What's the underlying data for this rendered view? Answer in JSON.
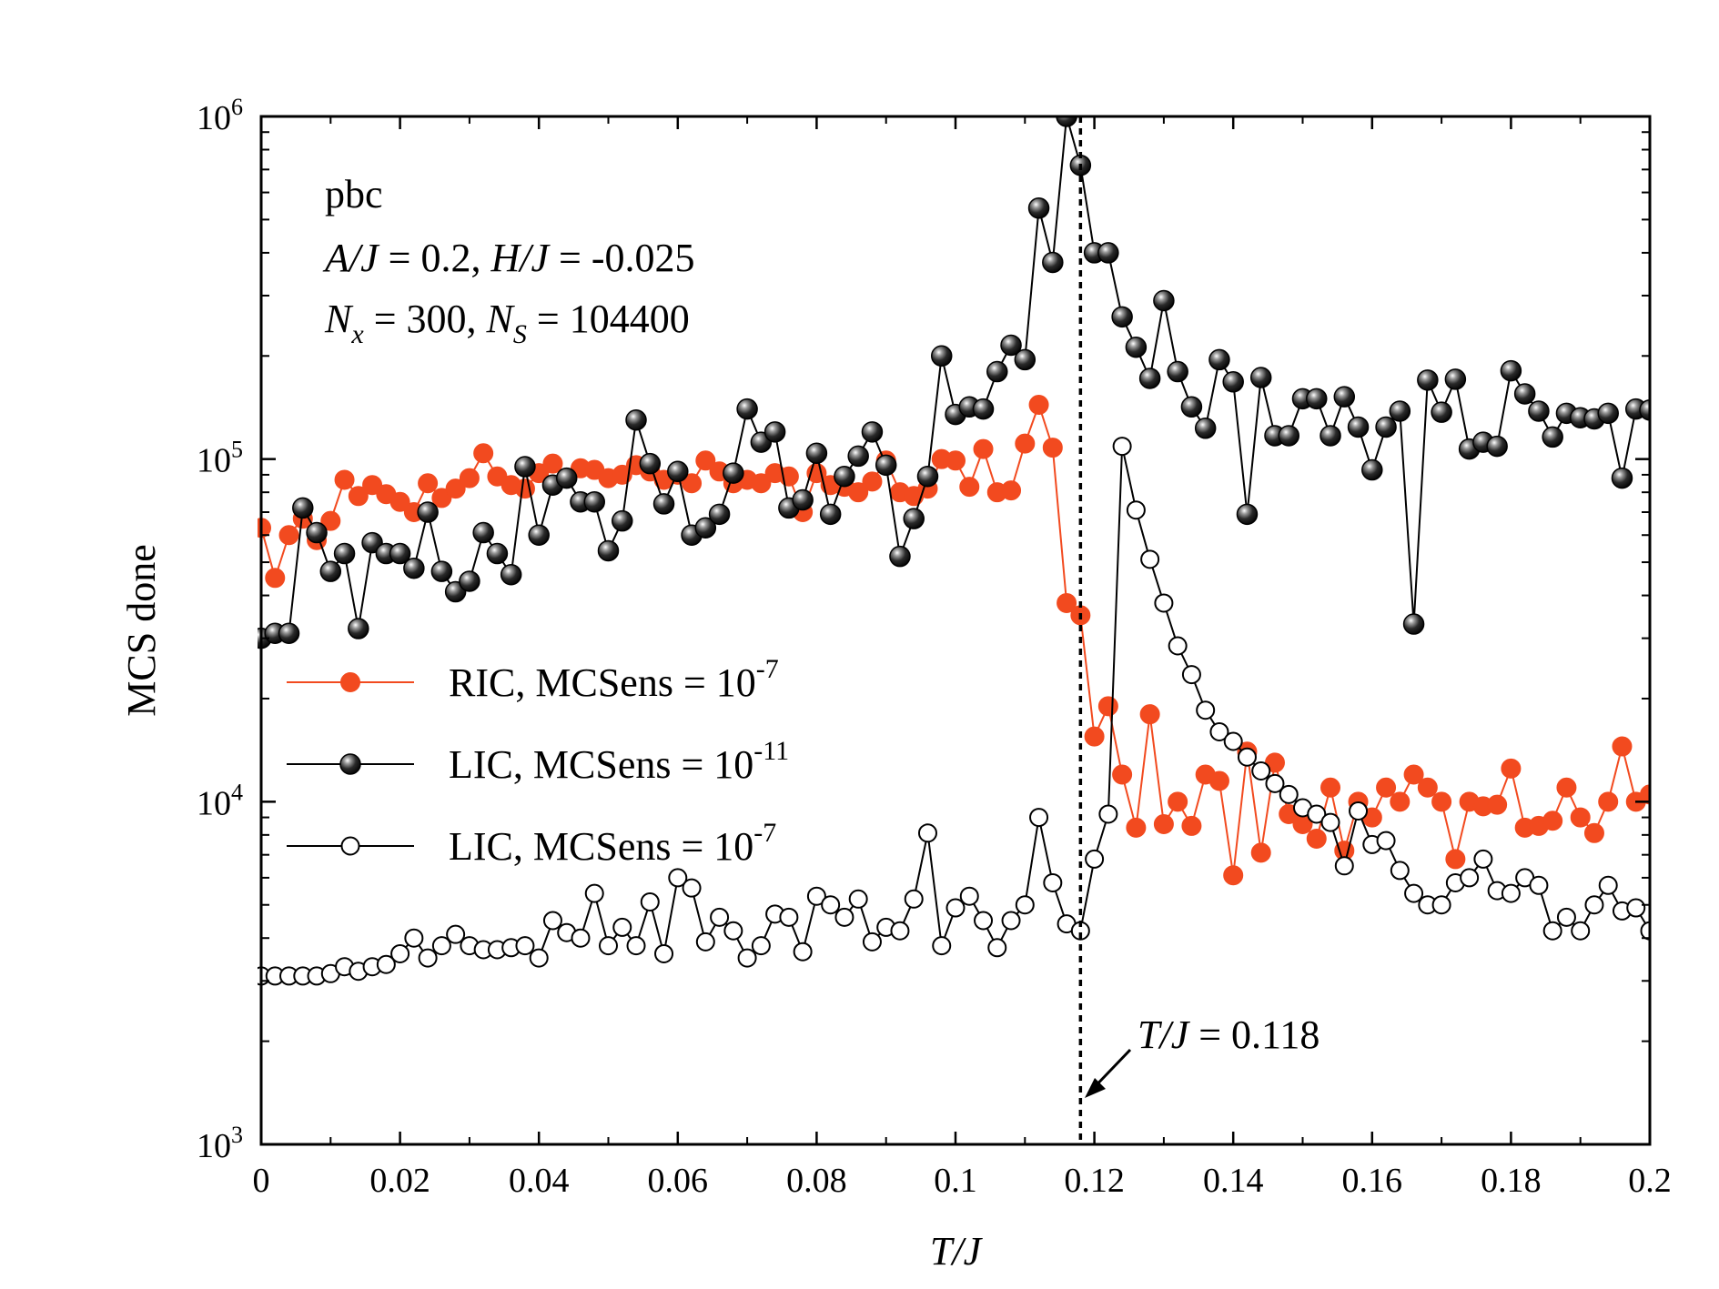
{
  "chart_data": {
    "type": "line",
    "xlabel": "T/J",
    "ylabel": "MCS done",
    "xlim": [
      0,
      0.2
    ],
    "ylim": [
      1000,
      1000000
    ],
    "yscale": "log",
    "x_ticks": [
      0,
      0.02,
      0.04,
      0.06,
      0.08,
      0.1,
      0.12,
      0.14,
      0.16,
      0.18,
      0.2
    ],
    "x_tick_labels": [
      "0",
      "0.02",
      "0.04",
      "0.06",
      "0.08",
      "0.1",
      "0.12",
      "0.14",
      "0.16",
      "0.18",
      "0.2"
    ],
    "y_ticks": [
      {
        "base": "10",
        "exp": "3",
        "value": 1000
      },
      {
        "base": "10",
        "exp": "4",
        "value": 10000
      },
      {
        "base": "10",
        "exp": "5",
        "value": 100000
      },
      {
        "base": "10",
        "exp": "6",
        "value": 1000000
      }
    ],
    "grid": false,
    "annotation_lines": [
      {
        "prefix": "pbc"
      },
      {
        "text": "A/J = 0.2,  H/J = -0.025"
      },
      {
        "text": "Nx = 300, NS = 104400"
      }
    ],
    "vline": {
      "x": 0.118,
      "label_var": "T/J",
      "label_rest": " = 0.118"
    },
    "legend_position": "center-left",
    "series": [
      {
        "name": "RIC, MCSens = 10-7",
        "legend_base": "RIC, MCSens = 10",
        "legend_exp": "-7",
        "color": "#f24a1f",
        "marker": "filled-circle",
        "x": [
          0,
          0.002,
          0.004,
          0.006,
          0.008,
          0.01,
          0.012,
          0.014,
          0.016,
          0.018,
          0.02,
          0.022,
          0.024,
          0.026,
          0.028,
          0.03,
          0.032,
          0.034,
          0.036,
          0.038,
          0.04,
          0.042,
          0.044,
          0.046,
          0.048,
          0.05,
          0.052,
          0.054,
          0.056,
          0.058,
          0.06,
          0.062,
          0.064,
          0.066,
          0.068,
          0.07,
          0.072,
          0.074,
          0.076,
          0.078,
          0.08,
          0.082,
          0.084,
          0.086,
          0.088,
          0.09,
          0.092,
          0.094,
          0.096,
          0.098,
          0.1,
          0.102,
          0.104,
          0.106,
          0.108,
          0.11,
          0.112,
          0.114,
          0.116,
          0.118,
          0.12,
          0.122,
          0.124,
          0.126,
          0.128,
          0.13,
          0.132,
          0.134,
          0.136,
          0.138,
          0.14,
          0.142,
          0.144,
          0.146,
          0.148,
          0.15,
          0.152,
          0.154,
          0.156,
          0.158,
          0.16,
          0.162,
          0.164,
          0.166,
          0.168,
          0.17,
          0.172,
          0.174,
          0.176,
          0.178,
          0.18,
          0.182,
          0.184,
          0.186,
          0.188,
          0.19,
          0.192,
          0.194,
          0.196,
          0.198,
          0.2
        ],
        "y": [
          63000,
          45000,
          60000,
          67000,
          58000,
          66000,
          87000,
          78000,
          84000,
          79000,
          75000,
          70000,
          85000,
          77000,
          82000,
          88000,
          104000,
          89000,
          84000,
          82000,
          91000,
          97000,
          88000,
          94000,
          93000,
          88000,
          90000,
          96000,
          92000,
          87000,
          90000,
          85000,
          99000,
          92000,
          85000,
          87000,
          85000,
          91000,
          89000,
          70000,
          91000,
          84000,
          83000,
          80000,
          86000,
          99000,
          80000,
          78000,
          82000,
          100000,
          99000,
          83000,
          107000,
          80000,
          81000,
          111000,
          144000,
          108000,
          38000,
          35000,
          15500,
          19000,
          12000,
          8400,
          18000,
          8600,
          10000,
          8500,
          12000,
          11500,
          6100,
          14000,
          7100,
          13000,
          9200,
          8600,
          7800,
          11000,
          7200,
          10000,
          9000,
          11000,
          10000,
          12000,
          11000,
          10000,
          6800,
          10000,
          9700,
          9800,
          12500,
          8400,
          8500,
          8800,
          11000,
          9000,
          8100,
          10000,
          14500,
          10000,
          10500
        ]
      },
      {
        "name": "LIC, MCSens = 10-11",
        "legend_base": "LIC, MCSens = 10",
        "legend_exp": "-11",
        "color": "#000000",
        "marker": "black-sphere",
        "x": [
          0,
          0.002,
          0.004,
          0.006,
          0.008,
          0.01,
          0.012,
          0.014,
          0.016,
          0.018,
          0.02,
          0.022,
          0.024,
          0.026,
          0.028,
          0.03,
          0.032,
          0.034,
          0.036,
          0.038,
          0.04,
          0.042,
          0.044,
          0.046,
          0.048,
          0.05,
          0.052,
          0.054,
          0.056,
          0.058,
          0.06,
          0.062,
          0.064,
          0.066,
          0.068,
          0.07,
          0.072,
          0.074,
          0.076,
          0.078,
          0.08,
          0.082,
          0.084,
          0.086,
          0.088,
          0.09,
          0.092,
          0.094,
          0.096,
          0.098,
          0.1,
          0.102,
          0.104,
          0.106,
          0.108,
          0.11,
          0.112,
          0.114,
          0.116,
          0.118,
          0.12,
          0.122,
          0.124,
          0.126,
          0.128,
          0.13,
          0.132,
          0.134,
          0.136,
          0.138,
          0.14,
          0.142,
          0.144,
          0.146,
          0.148,
          0.15,
          0.152,
          0.154,
          0.156,
          0.158,
          0.16,
          0.162,
          0.164,
          0.166,
          0.168,
          0.17,
          0.172,
          0.174,
          0.176,
          0.178,
          0.18,
          0.182,
          0.184,
          0.186,
          0.188,
          0.19,
          0.192,
          0.194,
          0.196,
          0.198,
          0.2
        ],
        "y": [
          30000,
          31000,
          31000,
          72000,
          61000,
          47000,
          53000,
          32000,
          57000,
          53000,
          53000,
          48000,
          70000,
          47000,
          41000,
          44000,
          61000,
          53000,
          46000,
          95000,
          60000,
          84000,
          88000,
          75000,
          75000,
          54000,
          66000,
          130000,
          97000,
          74000,
          92000,
          60000,
          63000,
          69000,
          91000,
          140000,
          112000,
          120000,
          72000,
          76000,
          104000,
          69000,
          89000,
          102000,
          120000,
          96000,
          52000,
          67000,
          89000,
          200000,
          135000,
          142000,
          140000,
          180000,
          215000,
          195000,
          540000,
          375000,
          1000000,
          720000,
          400000,
          400000,
          260000,
          212000,
          172000,
          290000,
          180000,
          142000,
          123000,
          195000,
          168000,
          69000,
          173000,
          117000,
          117000,
          150000,
          150000,
          117000,
          152000,
          124000,
          93000,
          124000,
          138000,
          33000,
          170000,
          137000,
          171000,
          107000,
          112000,
          109000,
          181000,
          155000,
          138000,
          116000,
          136000,
          132000,
          131000,
          136000,
          88000,
          140000,
          139000
        ]
      },
      {
        "name": "LIC, MCSens = 10-7",
        "legend_base": "LIC, MCSens = 10",
        "legend_exp": "-7",
        "color": "#000000",
        "marker": "open-circle",
        "x": [
          0,
          0.002,
          0.004,
          0.006,
          0.008,
          0.01,
          0.012,
          0.014,
          0.016,
          0.018,
          0.02,
          0.022,
          0.024,
          0.026,
          0.028,
          0.03,
          0.032,
          0.034,
          0.036,
          0.038,
          0.04,
          0.042,
          0.044,
          0.046,
          0.048,
          0.05,
          0.052,
          0.054,
          0.056,
          0.058,
          0.06,
          0.062,
          0.064,
          0.066,
          0.068,
          0.07,
          0.072,
          0.074,
          0.076,
          0.078,
          0.08,
          0.082,
          0.084,
          0.086,
          0.088,
          0.09,
          0.092,
          0.094,
          0.096,
          0.098,
          0.1,
          0.102,
          0.104,
          0.106,
          0.108,
          0.11,
          0.112,
          0.114,
          0.116,
          0.118,
          0.12,
          0.122,
          0.124,
          0.126,
          0.128,
          0.13,
          0.132,
          0.134,
          0.136,
          0.138,
          0.14,
          0.142,
          0.144,
          0.146,
          0.148,
          0.15,
          0.152,
          0.154,
          0.156,
          0.158,
          0.16,
          0.162,
          0.164,
          0.166,
          0.168,
          0.17,
          0.172,
          0.174,
          0.176,
          0.178,
          0.18,
          0.182,
          0.184,
          0.186,
          0.188,
          0.19,
          0.192,
          0.194,
          0.196,
          0.198,
          0.2
        ],
        "y": [
          3100,
          3100,
          3100,
          3100,
          3100,
          3150,
          3300,
          3200,
          3300,
          3350,
          3600,
          4000,
          3500,
          3800,
          4100,
          3800,
          3700,
          3700,
          3750,
          3800,
          3500,
          4500,
          4150,
          4000,
          5400,
          3800,
          4300,
          3800,
          5100,
          3600,
          6000,
          5600,
          3900,
          4600,
          4200,
          3500,
          3800,
          4700,
          4600,
          3650,
          5300,
          5000,
          4600,
          5200,
          3900,
          4300,
          4200,
          5200,
          8100,
          3800,
          4900,
          5300,
          4500,
          3750,
          4500,
          5000,
          9000,
          5800,
          4400,
          4200,
          6800,
          9200,
          109000,
          71000,
          51000,
          38000,
          28500,
          23500,
          18500,
          16000,
          15000,
          13500,
          12300,
          11300,
          10500,
          9600,
          9200,
          8700,
          6500,
          9400,
          7500,
          7700,
          6300,
          5400,
          5000,
          5000,
          5800,
          6000,
          6800,
          5500,
          5400,
          6000,
          5700,
          4200,
          4600,
          4200,
          5000,
          5700,
          4800,
          4900,
          4200
        ]
      }
    ]
  }
}
